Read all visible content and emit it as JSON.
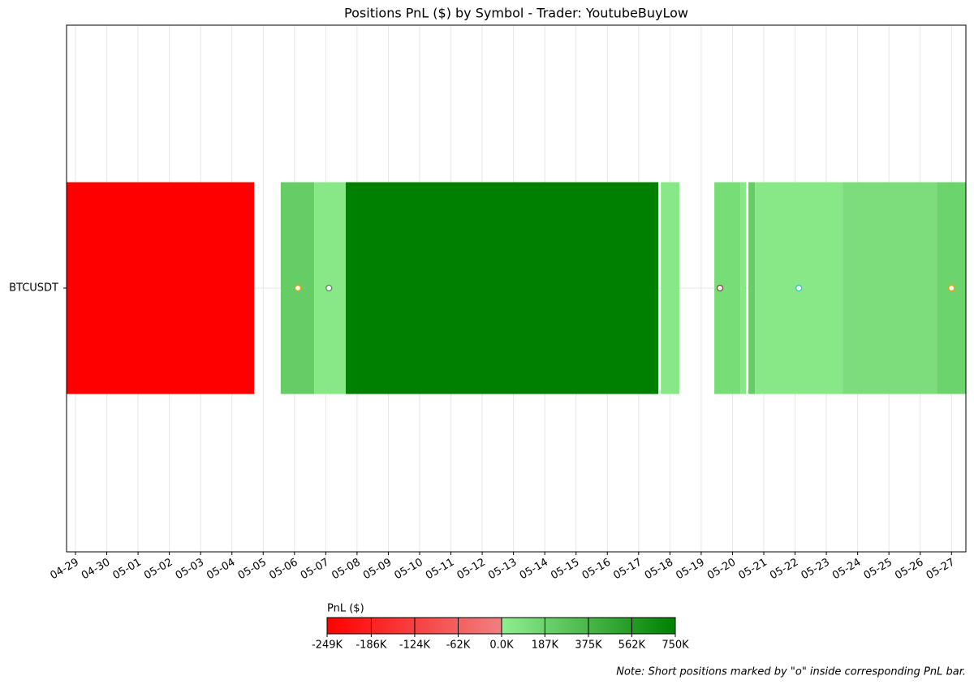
{
  "chart_data": {
    "type": "timeline",
    "title": "Positions PnL ($) by Symbol - Trader: YoutubeBuyLow",
    "categories": [
      "BTCUSDT"
    ],
    "xlim": [
      -0.285,
      28.46
    ],
    "xticks": [
      {
        "value": 0,
        "label": "04-29"
      },
      {
        "value": 1,
        "label": "04-30"
      },
      {
        "value": 2,
        "label": "05-01"
      },
      {
        "value": 3,
        "label": "05-02"
      },
      {
        "value": 4,
        "label": "05-03"
      },
      {
        "value": 5,
        "label": "05-04"
      },
      {
        "value": 6,
        "label": "05-05"
      },
      {
        "value": 7,
        "label": "05-06"
      },
      {
        "value": 8,
        "label": "05-07"
      },
      {
        "value": 9,
        "label": "05-08"
      },
      {
        "value": 10,
        "label": "05-09"
      },
      {
        "value": 11,
        "label": "05-10"
      },
      {
        "value": 12,
        "label": "05-11"
      },
      {
        "value": 13,
        "label": "05-12"
      },
      {
        "value": 14,
        "label": "05-13"
      },
      {
        "value": 15,
        "label": "05-14"
      },
      {
        "value": 16,
        "label": "05-15"
      },
      {
        "value": 17,
        "label": "05-16"
      },
      {
        "value": 18,
        "label": "05-17"
      },
      {
        "value": 19,
        "label": "05-18"
      },
      {
        "value": 20,
        "label": "05-19"
      },
      {
        "value": 21,
        "label": "05-20"
      },
      {
        "value": 22,
        "label": "05-21"
      },
      {
        "value": 23,
        "label": "05-22"
      },
      {
        "value": 24,
        "label": "05-23"
      },
      {
        "value": 25,
        "label": "05-24"
      },
      {
        "value": 26,
        "label": "05-25"
      },
      {
        "value": 27,
        "label": "05-26"
      },
      {
        "value": 28,
        "label": "05-27"
      }
    ],
    "grid": true,
    "segments": {
      "start": [
        -0.285,
        6.56,
        7.63,
        8.64,
        18.71,
        20.42,
        21.25,
        21.51,
        21.72,
        24.52,
        27.53
      ],
      "end": [
        5.71,
        7.63,
        8.64,
        18.63,
        19.3,
        21.25,
        21.43,
        21.72,
        24.52,
        27.53,
        28.46
      ],
      "values": [
        -249,
        220,
        20,
        750,
        20,
        130,
        20,
        220,
        20,
        100,
        180
      ],
      "colors": [
        "#ff0000",
        "#66cc66",
        "#88e888",
        "#008000",
        "#88e888",
        "#77dd77",
        "#88e888",
        "#66cc66",
        "#88e888",
        "#7ddd7d",
        "#6cd46c"
      ]
    },
    "markers": {
      "x": [
        7.11,
        8.1,
        20.6,
        23.12,
        28.0
      ],
      "colors": [
        "#ff9900",
        "#558855",
        "#884444",
        "#22cccc",
        "#ff9900"
      ]
    },
    "colorbar": {
      "label": "PnL ($)",
      "clim": [
        -249,
        750
      ],
      "colors": [
        "#ff0000",
        "#f08080",
        "#90ee90",
        "#008000"
      ],
      "ticks": [
        {
          "value": -249,
          "label": "-249K"
        },
        {
          "value": -186,
          "label": "-186K"
        },
        {
          "value": -124,
          "label": "-124K"
        },
        {
          "value": -62,
          "label": "-62K"
        },
        {
          "value": 0,
          "label": "0.0K"
        },
        {
          "value": 187,
          "label": "187K"
        },
        {
          "value": 375,
          "label": "375K"
        },
        {
          "value": 562,
          "label": "562K"
        },
        {
          "value": 750,
          "label": "750K"
        }
      ]
    },
    "note": "Note: Short positions marked by \"o\" inside corresponding PnL bar."
  }
}
